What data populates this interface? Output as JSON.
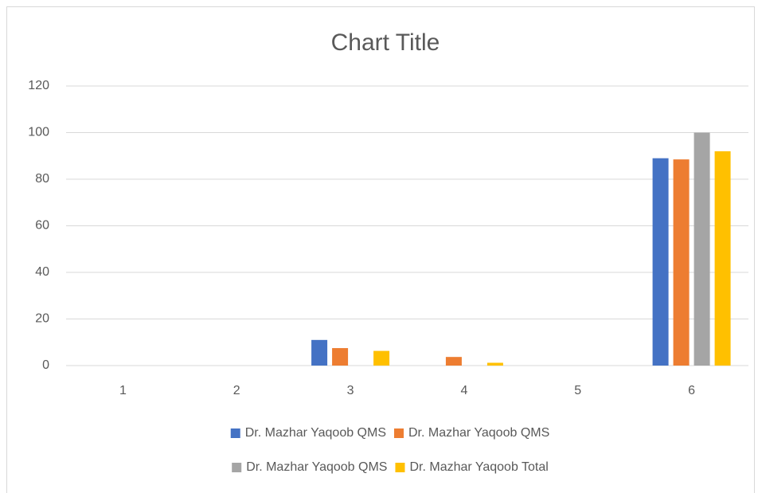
{
  "chart_data": {
    "type": "bar",
    "title": "Chart Title",
    "categories": [
      "1",
      "2",
      "3",
      "4",
      "5",
      "6"
    ],
    "series": [
      {
        "name": "Dr. Mazhar Yaqoob QMS",
        "color": "#4472c4",
        "values": [
          0,
          0,
          11,
          0,
          0,
          89
        ]
      },
      {
        "name": "Dr. Mazhar Yaqoob QMS",
        "color": "#ed7d31",
        "values": [
          0,
          0,
          7.5,
          3.7,
          0,
          88.5
        ]
      },
      {
        "name": "Dr. Mazhar Yaqoob QMS",
        "color": "#a5a5a5",
        "values": [
          0,
          0,
          0,
          0,
          0,
          100
        ]
      },
      {
        "name": "Dr. Mazhar Yaqoob Total",
        "color": "#ffc000",
        "values": [
          0,
          0,
          6.3,
          1.2,
          0,
          92
        ]
      }
    ],
    "ylim": [
      0,
      120
    ],
    "yticks": [
      0,
      20,
      40,
      60,
      80,
      100,
      120
    ],
    "grid": true,
    "legend": "bottom"
  }
}
